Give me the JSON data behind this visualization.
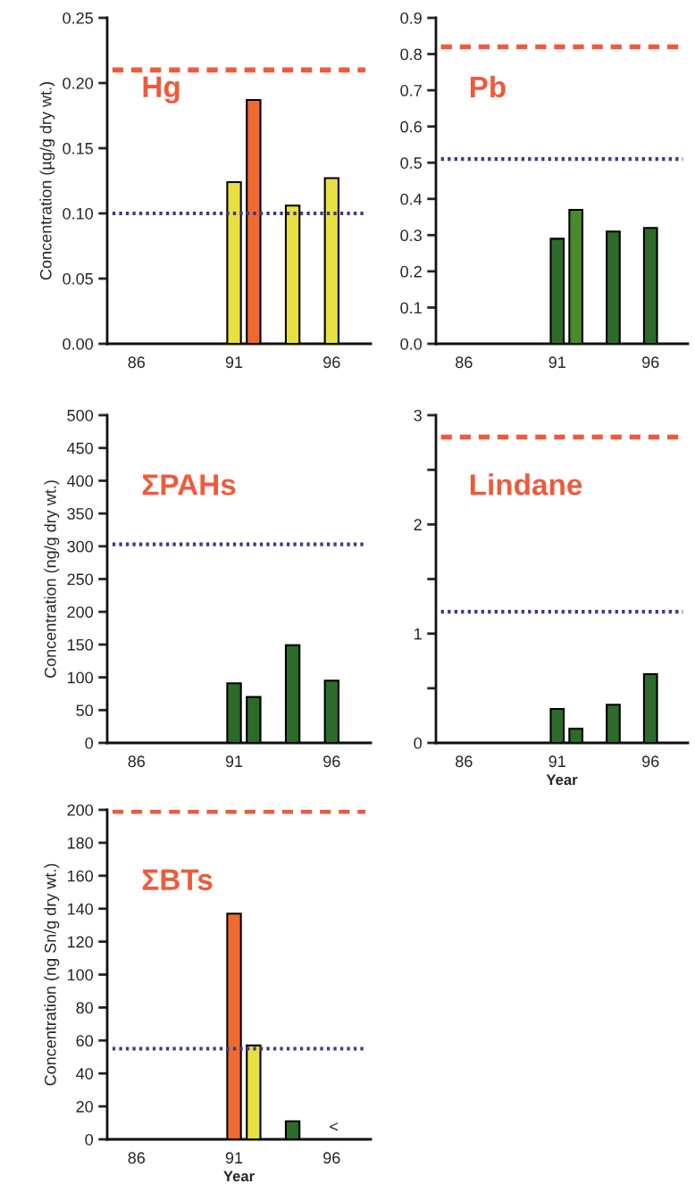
{
  "chart_data": [
    {
      "type": "bar",
      "title": "Hg",
      "ylabel": "Concentration (µg/g dry wt.)",
      "x": [
        91,
        92,
        94,
        96
      ],
      "values": [
        0.124,
        0.187,
        0.106,
        0.127
      ],
      "colors": [
        "#e8e040",
        "#f06a30",
        "#e8e040",
        "#e8e040"
      ],
      "xlim": [
        84.5,
        98
      ],
      "xticks": [
        86,
        91,
        96
      ],
      "ylim": [
        0,
        0.25
      ],
      "yticks": [
        {
          "value": 0,
          "label": "0.00"
        },
        {
          "value": 0.05,
          "label": "0.05"
        },
        {
          "value": 0.1,
          "label": "0.10"
        },
        {
          "value": 0.15,
          "label": "0.15"
        },
        {
          "value": 0.2,
          "label": "0.20"
        },
        {
          "value": 0.25,
          "label": "0.25"
        }
      ],
      "ref_lines": [
        {
          "axis": "y",
          "value": 0.21,
          "color": "#ee5a3c",
          "line_style": "dashed"
        },
        {
          "axis": "y",
          "value": 0.1,
          "color": "#3a3a8c",
          "line_style": "dotted"
        }
      ]
    },
    {
      "type": "bar",
      "title": "Pb",
      "x": [
        91,
        92,
        94,
        96
      ],
      "values": [
        0.29,
        0.37,
        0.31,
        0.32
      ],
      "colors": [
        "#2d6b2a",
        "#4a8a2a",
        "#2d6b2a",
        "#2d6b2a"
      ],
      "xlim": [
        84.5,
        98
      ],
      "xticks": [
        86,
        91,
        96
      ],
      "ylim": [
        0,
        0.9
      ],
      "yticks": [
        {
          "value": 0,
          "label": "0.0"
        },
        0.1,
        0.2,
        0.3,
        0.4,
        0.5,
        0.6,
        0.7,
        0.8,
        0.9
      ],
      "ref_lines": [
        {
          "axis": "y",
          "value": 0.82,
          "color": "#ee5a3c",
          "line_style": "dashed"
        },
        {
          "axis": "y",
          "value": 0.51,
          "color": "#3a3a8c",
          "line_style": "dotted"
        }
      ]
    },
    {
      "type": "bar",
      "title": "ΣPAHs",
      "ylabel": "Concentration (ng/g dry wt.)",
      "x": [
        91,
        92,
        94,
        96
      ],
      "values": [
        91,
        70,
        149,
        95
      ],
      "colors": [
        "#2d6b2a",
        "#2d6b2a",
        "#2d6b2a",
        "#2d6b2a"
      ],
      "xlim": [
        84.5,
        98
      ],
      "xticks": [
        86,
        91,
        96
      ],
      "ylim": [
        0,
        500
      ],
      "yticks": [
        0,
        50,
        100,
        150,
        200,
        250,
        300,
        350,
        400,
        450,
        500
      ],
      "ref_lines": [
        {
          "axis": "y",
          "value": 303,
          "color": "#3a3a8c",
          "line_style": "dotted"
        }
      ]
    },
    {
      "type": "bar",
      "title": "Lindane",
      "xlabel": "Year",
      "x": [
        91,
        92,
        94,
        96
      ],
      "values": [
        0.31,
        0.13,
        0.35,
        0.63
      ],
      "colors": [
        "#2d6b2a",
        "#2d6b2a",
        "#2d6b2a",
        "#2d6b2a"
      ],
      "xlim": [
        84.5,
        98
      ],
      "xticks": [
        86,
        91,
        96
      ],
      "ylim": [
        0,
        3
      ],
      "yticks": [
        0,
        {
          "value": 0.5,
          "label": null
        },
        1,
        {
          "value": 1.5,
          "label": null
        },
        2,
        {
          "value": 2.5,
          "label": null
        },
        3
      ],
      "ref_lines": [
        {
          "axis": "y",
          "value": 2.8,
          "color": "#ee5a3c",
          "line_style": "dashed"
        },
        {
          "axis": "y",
          "value": 1.2,
          "color": "#3a3a8c",
          "line_style": "dotted"
        }
      ]
    },
    {
      "type": "bar",
      "title": "ΣBTs",
      "ylabel": "Concentration (ng Sn/g dry wt.)",
      "xlabel": "Year",
      "x": [
        91,
        92,
        94
      ],
      "values": [
        137,
        57,
        11
      ],
      "colors": [
        "#f06a30",
        "#e8e040",
        "#2d6b2a"
      ],
      "xlim": [
        84.5,
        98
      ],
      "xticks": [
        86,
        91,
        96
      ],
      "ylim": [
        0,
        200
      ],
      "yticks": [
        0,
        20,
        40,
        60,
        80,
        100,
        120,
        140,
        160,
        180,
        200
      ],
      "ref_lines": [
        {
          "axis": "y",
          "value": 199,
          "color": "#ee5a3c",
          "line_style": "dashed"
        },
        {
          "axis": "y",
          "value": 55,
          "color": "#3a3a8c",
          "line_style": "dotted"
        }
      ],
      "annotations": [
        "<"
      ]
    }
  ]
}
